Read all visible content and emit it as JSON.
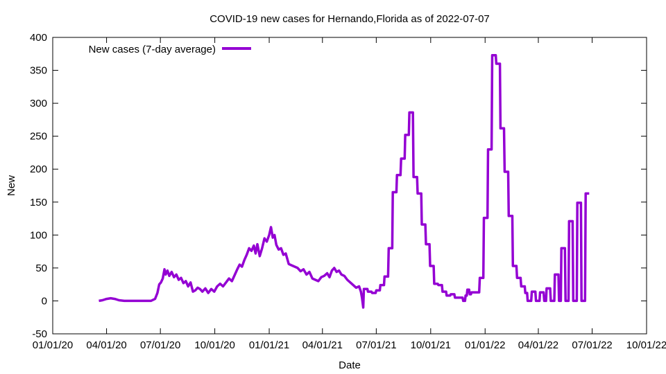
{
  "chart_data": {
    "type": "line",
    "title": "COVID-19 new cases for Hernando,Florida as of 2022-07-07",
    "xlabel": "Date",
    "ylabel": "New",
    "xlim": [
      "2020-01-01",
      "2022-10-01"
    ],
    "ylim": [
      -50,
      400
    ],
    "x_ticks": [
      {
        "date": "2020-01-01",
        "label": "01/01/20"
      },
      {
        "date": "2020-04-01",
        "label": "04/01/20"
      },
      {
        "date": "2020-07-01",
        "label": "07/01/20"
      },
      {
        "date": "2020-10-01",
        "label": "10/01/20"
      },
      {
        "date": "2021-01-01",
        "label": "01/01/21"
      },
      {
        "date": "2021-04-01",
        "label": "04/01/21"
      },
      {
        "date": "2021-07-01",
        "label": "07/01/21"
      },
      {
        "date": "2021-10-01",
        "label": "10/01/21"
      },
      {
        "date": "2022-01-01",
        "label": "01/01/22"
      },
      {
        "date": "2022-04-01",
        "label": "04/01/22"
      },
      {
        "date": "2022-07-01",
        "label": "07/01/22"
      },
      {
        "date": "2022-10-01",
        "label": "10/01/22"
      }
    ],
    "y_ticks": [
      {
        "value": -50,
        "label": "-50"
      },
      {
        "value": 0,
        "label": "0"
      },
      {
        "value": 50,
        "label": "50"
      },
      {
        "value": 100,
        "label": "100"
      },
      {
        "value": 150,
        "label": "150"
      },
      {
        "value": 200,
        "label": "200"
      },
      {
        "value": 250,
        "label": "250"
      },
      {
        "value": 300,
        "label": "300"
      },
      {
        "value": 350,
        "label": "350"
      },
      {
        "value": 400,
        "label": "400"
      }
    ],
    "grid": false,
    "legend_position": "top-left",
    "series": [
      {
        "name": "New cases (7-day average)",
        "color": "#9400d3",
        "points": [
          [
            "2020-03-19",
            0
          ],
          [
            "2020-03-25",
            1
          ],
          [
            "2020-04-01",
            3
          ],
          [
            "2020-04-08",
            4
          ],
          [
            "2020-04-15",
            3
          ],
          [
            "2020-04-22",
            1
          ],
          [
            "2020-05-01",
            0
          ],
          [
            "2020-05-15",
            0
          ],
          [
            "2020-06-01",
            0
          ],
          [
            "2020-06-15",
            0
          ],
          [
            "2020-06-22",
            3
          ],
          [
            "2020-06-26",
            12
          ],
          [
            "2020-06-29",
            25
          ],
          [
            "2020-07-02",
            28
          ],
          [
            "2020-07-05",
            34
          ],
          [
            "2020-07-08",
            48
          ],
          [
            "2020-07-10",
            40
          ],
          [
            "2020-07-13",
            46
          ],
          [
            "2020-07-16",
            38
          ],
          [
            "2020-07-20",
            44
          ],
          [
            "2020-07-24",
            36
          ],
          [
            "2020-07-28",
            40
          ],
          [
            "2020-08-01",
            32
          ],
          [
            "2020-08-05",
            35
          ],
          [
            "2020-08-09",
            27
          ],
          [
            "2020-08-13",
            30
          ],
          [
            "2020-08-17",
            22
          ],
          [
            "2020-08-21",
            28
          ],
          [
            "2020-08-25",
            14
          ],
          [
            "2020-08-29",
            16
          ],
          [
            "2020-09-02",
            20
          ],
          [
            "2020-09-06",
            18
          ],
          [
            "2020-09-10",
            14
          ],
          [
            "2020-09-15",
            19
          ],
          [
            "2020-09-20",
            12
          ],
          [
            "2020-09-25",
            18
          ],
          [
            "2020-09-30",
            14
          ],
          [
            "2020-10-05",
            22
          ],
          [
            "2020-10-10",
            26
          ],
          [
            "2020-10-15",
            22
          ],
          [
            "2020-10-20",
            28
          ],
          [
            "2020-10-25",
            34
          ],
          [
            "2020-10-30",
            30
          ],
          [
            "2020-11-04",
            40
          ],
          [
            "2020-11-08",
            48
          ],
          [
            "2020-11-12",
            55
          ],
          [
            "2020-11-16",
            52
          ],
          [
            "2020-11-20",
            62
          ],
          [
            "2020-11-24",
            70
          ],
          [
            "2020-11-28",
            80
          ],
          [
            "2020-12-02",
            76
          ],
          [
            "2020-12-06",
            84
          ],
          [
            "2020-12-09",
            72
          ],
          [
            "2020-12-12",
            86
          ],
          [
            "2020-12-16",
            68
          ],
          [
            "2020-12-20",
            80
          ],
          [
            "2020-12-24",
            95
          ],
          [
            "2020-12-28",
            90
          ],
          [
            "2021-01-01",
            100
          ],
          [
            "2021-01-04",
            112
          ],
          [
            "2021-01-07",
            96
          ],
          [
            "2021-01-10",
            100
          ],
          [
            "2021-01-13",
            85
          ],
          [
            "2021-01-17",
            78
          ],
          [
            "2021-01-21",
            80
          ],
          [
            "2021-01-25",
            70
          ],
          [
            "2021-01-29",
            72
          ],
          [
            "2021-02-03",
            56
          ],
          [
            "2021-02-08",
            54
          ],
          [
            "2021-02-13",
            52
          ],
          [
            "2021-02-18",
            50
          ],
          [
            "2021-02-23",
            45
          ],
          [
            "2021-02-28",
            48
          ],
          [
            "2021-03-05",
            40
          ],
          [
            "2021-03-10",
            44
          ],
          [
            "2021-03-15",
            34
          ],
          [
            "2021-03-20",
            32
          ],
          [
            "2021-03-25",
            30
          ],
          [
            "2021-03-30",
            36
          ],
          [
            "2021-04-04",
            38
          ],
          [
            "2021-04-09",
            42
          ],
          [
            "2021-04-13",
            36
          ],
          [
            "2021-04-17",
            46
          ],
          [
            "2021-04-21",
            50
          ],
          [
            "2021-04-25",
            44
          ],
          [
            "2021-04-29",
            46
          ],
          [
            "2021-05-03",
            40
          ],
          [
            "2021-05-08",
            38
          ],
          [
            "2021-05-13",
            32
          ],
          [
            "2021-05-18",
            28
          ],
          [
            "2021-05-23",
            24
          ],
          [
            "2021-05-28",
            20
          ],
          [
            "2021-06-02",
            22
          ],
          [
            "2021-06-05",
            14
          ],
          [
            "2021-06-07",
            4
          ],
          [
            "2021-06-09",
            -10
          ],
          [
            "2021-06-10",
            18
          ],
          [
            "2021-06-16",
            18
          ],
          [
            "2021-06-17",
            14
          ],
          [
            "2021-06-23",
            14
          ],
          [
            "2021-06-24",
            12
          ],
          [
            "2021-06-30",
            12
          ],
          [
            "2021-07-01",
            16
          ],
          [
            "2021-07-07",
            16
          ],
          [
            "2021-07-08",
            24
          ],
          [
            "2021-07-14",
            24
          ],
          [
            "2021-07-15",
            37
          ],
          [
            "2021-07-21",
            37
          ],
          [
            "2021-07-22",
            80
          ],
          [
            "2021-07-28",
            80
          ],
          [
            "2021-07-29",
            165
          ],
          [
            "2021-08-04",
            165
          ],
          [
            "2021-08-05",
            191
          ],
          [
            "2021-08-11",
            191
          ],
          [
            "2021-08-12",
            216
          ],
          [
            "2021-08-18",
            216
          ],
          [
            "2021-08-19",
            252
          ],
          [
            "2021-08-25",
            252
          ],
          [
            "2021-08-26",
            286
          ],
          [
            "2021-09-01",
            286
          ],
          [
            "2021-09-02",
            188
          ],
          [
            "2021-09-08",
            188
          ],
          [
            "2021-09-09",
            163
          ],
          [
            "2021-09-15",
            163
          ],
          [
            "2021-09-16",
            116
          ],
          [
            "2021-09-22",
            116
          ],
          [
            "2021-09-23",
            86
          ],
          [
            "2021-09-29",
            86
          ],
          [
            "2021-09-30",
            53
          ],
          [
            "2021-10-06",
            53
          ],
          [
            "2021-10-07",
            26
          ],
          [
            "2021-10-13",
            26
          ],
          [
            "2021-10-14",
            24
          ],
          [
            "2021-10-20",
            24
          ],
          [
            "2021-10-21",
            14
          ],
          [
            "2021-10-27",
            14
          ],
          [
            "2021-10-28",
            8
          ],
          [
            "2021-11-03",
            8
          ],
          [
            "2021-11-04",
            10
          ],
          [
            "2021-11-10",
            10
          ],
          [
            "2021-11-11",
            5
          ],
          [
            "2021-11-24",
            5
          ],
          [
            "2021-11-25",
            0
          ],
          [
            "2021-11-28",
            0
          ],
          [
            "2021-11-29",
            8
          ],
          [
            "2021-12-01",
            8
          ],
          [
            "2021-12-02",
            17
          ],
          [
            "2021-12-05",
            17
          ],
          [
            "2021-12-06",
            10
          ],
          [
            "2021-12-08",
            10
          ],
          [
            "2021-12-09",
            13
          ],
          [
            "2021-12-22",
            13
          ],
          [
            "2021-12-23",
            35
          ],
          [
            "2021-12-29",
            35
          ],
          [
            "2021-12-30",
            126
          ],
          [
            "2022-01-05",
            126
          ],
          [
            "2022-01-06",
            230
          ],
          [
            "2022-01-12",
            230
          ],
          [
            "2022-01-13",
            373
          ],
          [
            "2022-01-19",
            373
          ],
          [
            "2022-01-20",
            360
          ],
          [
            "2022-01-26",
            360
          ],
          [
            "2022-01-27",
            262
          ],
          [
            "2022-02-02",
            262
          ],
          [
            "2022-02-03",
            196
          ],
          [
            "2022-02-09",
            196
          ],
          [
            "2022-02-10",
            129
          ],
          [
            "2022-02-16",
            129
          ],
          [
            "2022-02-17",
            53
          ],
          [
            "2022-02-23",
            53
          ],
          [
            "2022-02-24",
            35
          ],
          [
            "2022-03-02",
            35
          ],
          [
            "2022-03-03",
            22
          ],
          [
            "2022-03-09",
            22
          ],
          [
            "2022-03-10",
            12
          ],
          [
            "2022-03-13",
            12
          ],
          [
            "2022-03-14",
            0
          ],
          [
            "2022-03-20",
            0
          ],
          [
            "2022-03-21",
            14
          ],
          [
            "2022-03-27",
            14
          ],
          [
            "2022-03-28",
            0
          ],
          [
            "2022-04-03",
            0
          ],
          [
            "2022-04-04",
            13
          ],
          [
            "2022-04-10",
            13
          ],
          [
            "2022-04-11",
            0
          ],
          [
            "2022-04-14",
            0
          ],
          [
            "2022-04-15",
            19
          ],
          [
            "2022-04-21",
            19
          ],
          [
            "2022-04-22",
            0
          ],
          [
            "2022-04-28",
            0
          ],
          [
            "2022-04-29",
            40
          ],
          [
            "2022-05-05",
            40
          ],
          [
            "2022-05-06",
            0
          ],
          [
            "2022-05-09",
            0
          ],
          [
            "2022-05-10",
            80
          ],
          [
            "2022-05-16",
            80
          ],
          [
            "2022-05-17",
            0
          ],
          [
            "2022-05-22",
            0
          ],
          [
            "2022-05-23",
            121
          ],
          [
            "2022-05-29",
            121
          ],
          [
            "2022-05-30",
            0
          ],
          [
            "2022-06-05",
            0
          ],
          [
            "2022-06-06",
            149
          ],
          [
            "2022-06-12",
            149
          ],
          [
            "2022-06-13",
            0
          ],
          [
            "2022-06-19",
            0
          ],
          [
            "2022-06-20",
            163
          ],
          [
            "2022-06-26",
            163
          ]
        ]
      }
    ]
  }
}
